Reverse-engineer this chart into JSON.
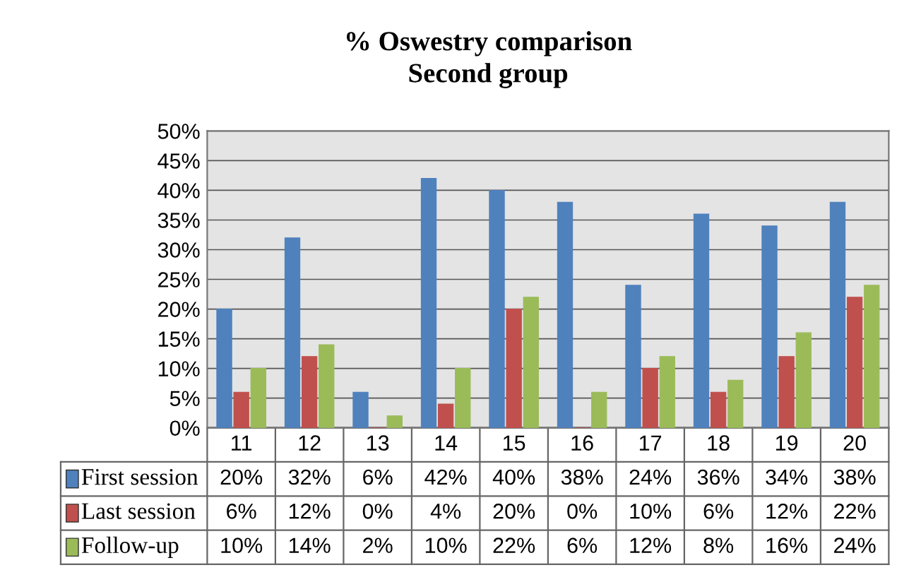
{
  "chart_data": {
    "type": "bar",
    "title": "% Oswestry comparison",
    "subtitle": "Second group",
    "categories": [
      "11",
      "12",
      "13",
      "14",
      "15",
      "16",
      "17",
      "18",
      "19",
      "20"
    ],
    "series": [
      {
        "name": "First session",
        "color": "#4f81bd",
        "values": [
          20,
          32,
          6,
          42,
          40,
          38,
          24,
          36,
          34,
          38
        ],
        "value_labels": [
          "20%",
          "32%",
          "6%",
          "42%",
          "40%",
          "38%",
          "24%",
          "36%",
          "34%",
          "38%"
        ]
      },
      {
        "name": "Last session",
        "color": "#c0504d",
        "values": [
          6,
          12,
          0,
          4,
          20,
          0,
          10,
          6,
          12,
          22
        ],
        "value_labels": [
          "6%",
          "12%",
          "0%",
          "4%",
          "20%",
          "0%",
          "10%",
          "6%",
          "12%",
          "22%"
        ]
      },
      {
        "name": "Follow-up",
        "color": "#9bbb59",
        "values": [
          10,
          14,
          2,
          10,
          22,
          6,
          12,
          8,
          16,
          24
        ],
        "value_labels": [
          "10%",
          "14%",
          "2%",
          "10%",
          "22%",
          "6%",
          "12%",
          "8%",
          "16%",
          "24%"
        ]
      }
    ],
    "ylim": [
      0,
      50
    ],
    "yticks": [
      {
        "value": 0,
        "label": "0%"
      },
      {
        "value": 5,
        "label": "5%"
      },
      {
        "value": 10,
        "label": "10%"
      },
      {
        "value": 15,
        "label": "15%"
      },
      {
        "value": 20,
        "label": "20%"
      },
      {
        "value": 25,
        "label": "25%"
      },
      {
        "value": 30,
        "label": "30%"
      },
      {
        "value": 35,
        "label": "35%"
      },
      {
        "value": 40,
        "label": "40%"
      },
      {
        "value": 45,
        "label": "45%"
      },
      {
        "value": 50,
        "label": "50%"
      }
    ],
    "grid": "y",
    "legend": "bottom left"
  }
}
